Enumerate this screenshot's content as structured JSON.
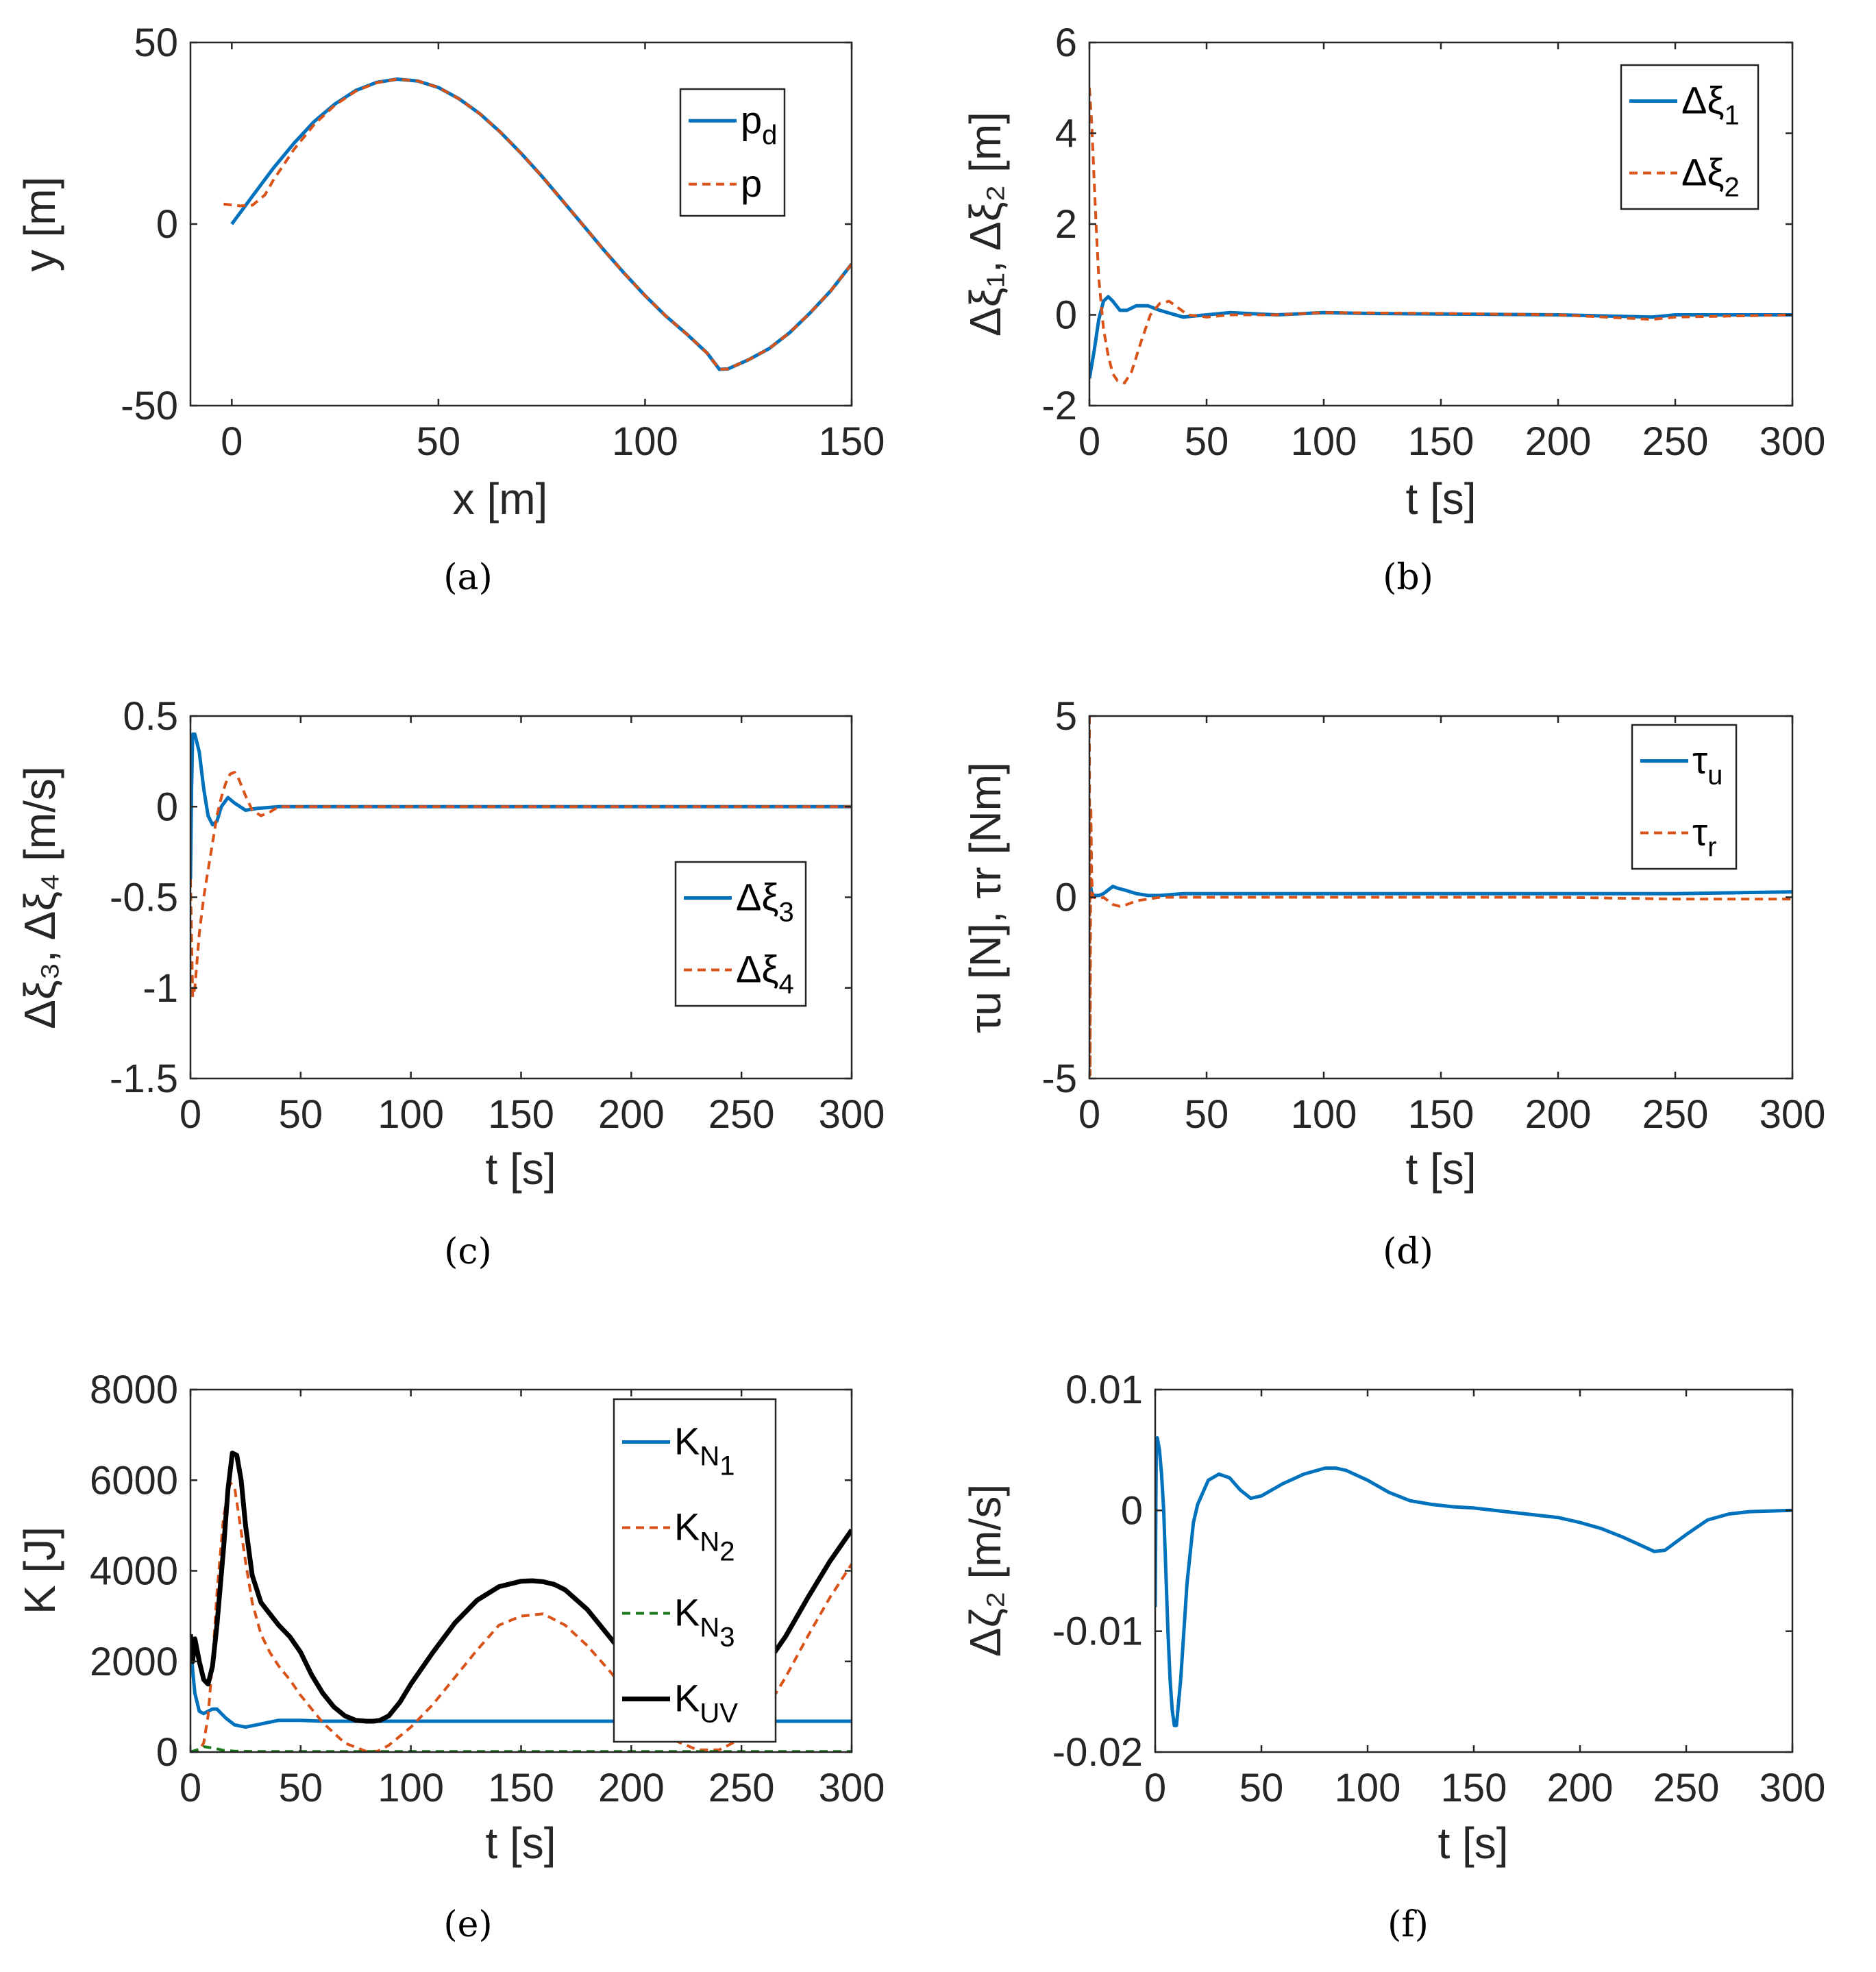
{
  "colors": {
    "blue": "#0072BD",
    "orange": "#D95319",
    "green": "#1A7A1A",
    "black": "#000000"
  },
  "chart_data": [
    {
      "id": "a",
      "type": "line",
      "caption": "(a)",
      "xlabel": "x [m]",
      "ylabel": "y [m]",
      "xlim": [
        -10,
        150
      ],
      "ylim": [
        -50,
        50
      ],
      "xticks": [
        0,
        50,
        100,
        150
      ],
      "yticks": [
        -50,
        0,
        50
      ],
      "legend_position": "upper-right",
      "series": [
        {
          "name": "p_d",
          "label": "p",
          "sub": "d",
          "color": "blue",
          "dash": false,
          "width": 5,
          "x": [
            0,
            5,
            10,
            15,
            20,
            25,
            30,
            35,
            40,
            45,
            50,
            55,
            60,
            65,
            70,
            75,
            80,
            85,
            90,
            95,
            100,
            105,
            110,
            115,
            118,
            120,
            125,
            130,
            135,
            140,
            145,
            150
          ],
          "y": [
            0,
            7.7,
            15.3,
            22.2,
            28.3,
            33.1,
            36.8,
            39.0,
            39.9,
            39.4,
            37.6,
            34.5,
            30.4,
            25.3,
            19.5,
            13.2,
            6.5,
            -0.3,
            -7.1,
            -13.6,
            -19.7,
            -25.3,
            -30.2,
            -35.5,
            -40,
            -39.9,
            -37.4,
            -34.3,
            -29.9,
            -24.4,
            -18.3,
            -11.0
          ]
        },
        {
          "name": "p",
          "label": "p",
          "sub": "",
          "color": "orange",
          "dash": true,
          "width": 4,
          "x": [
            -2,
            2,
            5,
            8,
            10,
            15,
            20,
            25,
            30,
            35,
            40,
            45,
            50,
            55,
            60,
            65,
            70,
            75,
            80,
            85,
            90,
            95,
            100,
            105,
            110,
            115,
            118,
            120,
            125,
            130,
            135,
            140,
            145,
            150
          ],
          "y": [
            5.5,
            5,
            5.2,
            8,
            12,
            20.5,
            27.5,
            32.8,
            36.6,
            38.9,
            39.9,
            39.4,
            37.6,
            34.5,
            30.4,
            25.3,
            19.5,
            13.2,
            6.5,
            -0.3,
            -7.1,
            -13.6,
            -19.7,
            -25.3,
            -30.2,
            -35.5,
            -40,
            -39.9,
            -37.4,
            -34.3,
            -29.9,
            -24.4,
            -18.3,
            -11.0
          ]
        }
      ]
    },
    {
      "id": "b",
      "type": "line",
      "caption": "(b)",
      "xlabel": "t [s]",
      "ylabel": "Δξ₁, Δξ₂ [m]",
      "xlim": [
        0,
        300
      ],
      "ylim": [
        -2,
        6
      ],
      "xticks": [
        0,
        50,
        100,
        150,
        200,
        250,
        300
      ],
      "yticks": [
        -2,
        0,
        2,
        4,
        6
      ],
      "legend_position": "upper-right",
      "series": [
        {
          "name": "Δξ1",
          "label": "Δξ",
          "sub": "1",
          "color": "blue",
          "dash": false,
          "width": 5,
          "x": [
            0,
            2,
            4,
            6,
            8,
            10,
            13,
            16,
            20,
            25,
            30,
            40,
            50,
            60,
            80,
            100,
            120,
            150,
            200,
            240,
            250,
            300
          ],
          "y": [
            -1.4,
            -0.8,
            -0.1,
            0.3,
            0.4,
            0.3,
            0.1,
            0.1,
            0.2,
            0.2,
            0.1,
            -0.05,
            0.0,
            0.05,
            0.0,
            0.05,
            0.03,
            0.02,
            0.0,
            -0.05,
            0.0,
            0.0
          ]
        },
        {
          "name": "Δξ2",
          "label": "Δξ",
          "sub": "2",
          "color": "orange",
          "dash": true,
          "width": 4,
          "x": [
            0,
            1,
            2,
            3,
            4,
            6,
            8,
            10,
            12,
            15,
            18,
            22,
            26,
            30,
            34,
            38,
            42,
            50,
            60,
            80,
            100,
            150,
            200,
            240,
            250,
            300
          ],
          "y": [
            5.0,
            4.2,
            3.0,
            1.8,
            0.8,
            -0.3,
            -0.9,
            -1.3,
            -1.45,
            -1.5,
            -1.25,
            -0.6,
            0.0,
            0.25,
            0.3,
            0.15,
            0.0,
            -0.05,
            0.0,
            0.0,
            0.05,
            0.03,
            0.0,
            -0.1,
            -0.05,
            0.0
          ]
        }
      ]
    },
    {
      "id": "c",
      "type": "line",
      "caption": "(c)",
      "xlabel": "t [s]",
      "ylabel": "Δξ₃, Δξ₄ [m/s]",
      "xlim": [
        0,
        300
      ],
      "ylim": [
        -1.5,
        0.5
      ],
      "xticks": [
        0,
        50,
        100,
        150,
        200,
        250,
        300
      ],
      "yticks": [
        -1.5,
        -1,
        -0.5,
        0,
        0.5
      ],
      "legend_position": "lower-right",
      "series": [
        {
          "name": "Δξ3",
          "label": "Δξ",
          "sub": "3",
          "color": "blue",
          "dash": false,
          "width": 5,
          "x": [
            0,
            0.5,
            1,
            2,
            4,
            6,
            8,
            10,
            12,
            14,
            17,
            20,
            25,
            30,
            40,
            50,
            100,
            150,
            200,
            250,
            300
          ],
          "y": [
            -0.4,
            0.1,
            0.4,
            0.4,
            0.3,
            0.1,
            -0.05,
            -0.1,
            -0.08,
            0.0,
            0.05,
            0.02,
            -0.02,
            -0.01,
            0.0,
            0.0,
            0.0,
            0.0,
            0.0,
            0.0,
            0.0
          ]
        },
        {
          "name": "Δξ4",
          "label": "Δξ",
          "sub": "4",
          "color": "orange",
          "dash": true,
          "width": 4,
          "x": [
            0,
            1,
            2,
            3,
            4,
            6,
            8,
            10,
            12,
            14,
            16,
            18,
            20,
            22,
            25,
            28,
            32,
            36,
            40,
            50,
            100,
            150,
            200,
            250,
            300
          ],
          "y": [
            -0.4,
            -1.05,
            -1.0,
            -0.85,
            -0.7,
            -0.5,
            -0.35,
            -0.2,
            -0.05,
            0.05,
            0.13,
            0.18,
            0.19,
            0.15,
            0.06,
            -0.02,
            -0.05,
            -0.03,
            0.0,
            0.0,
            0.0,
            0.0,
            0.0,
            0.0,
            0.0
          ]
        }
      ]
    },
    {
      "id": "d",
      "type": "line",
      "caption": "(d)",
      "xlabel": "t [s]",
      "ylabel": "τu [N], τr [Nm]",
      "xlim": [
        0,
        300
      ],
      "ylim": [
        -5,
        5
      ],
      "xticks": [
        0,
        50,
        100,
        150,
        200,
        250,
        300
      ],
      "yticks": [
        -5,
        0,
        5
      ],
      "legend_position": "upper-right",
      "series": [
        {
          "name": "τu",
          "label": "τ",
          "sub": "u",
          "color": "blue",
          "dash": false,
          "width": 5,
          "x": [
            0,
            1,
            2,
            4,
            6,
            8,
            10,
            12,
            15,
            20,
            25,
            30,
            40,
            50,
            100,
            150,
            200,
            250,
            300
          ],
          "y": [
            0.5,
            0.1,
            0.05,
            0.05,
            0.1,
            0.2,
            0.3,
            0.25,
            0.2,
            0.1,
            0.05,
            0.05,
            0.1,
            0.1,
            0.1,
            0.1,
            0.1,
            0.1,
            0.15
          ]
        },
        {
          "name": "τr",
          "label": "τ",
          "sub": "r",
          "color": "orange",
          "dash": true,
          "width": 4,
          "x": [
            0,
            0.3,
            0.6,
            1,
            1.5,
            2,
            4,
            6,
            8,
            10,
            13,
            16,
            20,
            25,
            30,
            40,
            50,
            100,
            150,
            200,
            250,
            300
          ],
          "y": [
            5,
            -4.9,
            2.5,
            0.5,
            0.0,
            0.0,
            -0.05,
            0.0,
            -0.1,
            -0.2,
            -0.25,
            -0.2,
            -0.1,
            -0.05,
            0.0,
            0.0,
            0.0,
            0.0,
            0.0,
            0.0,
            -0.05,
            -0.05
          ]
        }
      ]
    },
    {
      "id": "e",
      "type": "line",
      "caption": "(e)",
      "xlabel": "t [s]",
      "ylabel": "K [J]",
      "xlim": [
        0,
        300
      ],
      "ylim": [
        0,
        8000
      ],
      "xticks": [
        0,
        50,
        100,
        150,
        200,
        250,
        300
      ],
      "yticks": [
        0,
        2000,
        4000,
        6000,
        8000
      ],
      "legend_position": "upper-right",
      "series": [
        {
          "name": "KN1",
          "label": "K",
          "sub": "N",
          "subsub": "1",
          "color": "blue",
          "dash": false,
          "width": 5,
          "x": [
            0,
            1,
            2,
            4,
            6,
            8,
            10,
            12,
            14,
            16,
            20,
            25,
            30,
            40,
            50,
            60,
            80,
            100,
            150,
            200,
            250,
            300
          ],
          "y": [
            2600,
            1800,
            1300,
            900,
            850,
            900,
            950,
            950,
            850,
            750,
            600,
            550,
            600,
            700,
            700,
            680,
            680,
            680,
            680,
            680,
            680,
            680
          ]
        },
        {
          "name": "KN2",
          "label": "K",
          "sub": "N",
          "subsub": "2",
          "color": "orange",
          "dash": true,
          "width": 4,
          "x": [
            0,
            2,
            4,
            6,
            8,
            10,
            12,
            15,
            18,
            20,
            22,
            25,
            28,
            32,
            36,
            40,
            45,
            50,
            60,
            70,
            80,
            85,
            90,
            100,
            110,
            120,
            130,
            140,
            150,
            160,
            170,
            180,
            190,
            200,
            210,
            220,
            230,
            240,
            250,
            260,
            270,
            280,
            290,
            300
          ],
          "y": [
            0,
            0,
            50,
            200,
            800,
            2000,
            3500,
            5200,
            5950,
            5850,
            5200,
            4200,
            3300,
            2600,
            2200,
            1900,
            1600,
            1250,
            650,
            200,
            10,
            20,
            150,
            550,
            1050,
            1650,
            2250,
            2800,
            3000,
            3050,
            2800,
            2350,
            1800,
            1200,
            650,
            250,
            50,
            50,
            300,
            850,
            1650,
            2550,
            3400,
            4150
          ]
        },
        {
          "name": "KN3",
          "label": "K",
          "sub": "N",
          "subsub": "3",
          "color": "green",
          "dash": true,
          "width": 4,
          "x": [
            0,
            3,
            6,
            10,
            15,
            20,
            30,
            50,
            100,
            150,
            200,
            250,
            300
          ],
          "y": [
            0,
            50,
            120,
            90,
            40,
            20,
            10,
            10,
            10,
            10,
            10,
            10,
            10
          ]
        },
        {
          "name": "KUV",
          "label": "K",
          "sub": "UV",
          "subsub": "",
          "color": "black",
          "dash": false,
          "width": 7,
          "x": [
            0,
            1,
            2,
            4,
            6,
            8,
            10,
            12,
            15,
            17,
            19,
            21,
            23,
            25,
            28,
            32,
            36,
            40,
            45,
            50,
            55,
            60,
            65,
            70,
            75,
            80,
            83,
            86,
            90,
            95,
            100,
            110,
            120,
            130,
            140,
            150,
            155,
            160,
            165,
            170,
            180,
            190,
            200,
            210,
            220,
            230,
            240,
            250,
            260,
            270,
            280,
            290,
            300
          ],
          "y": [
            2600,
            2000,
            2500,
            2000,
            1600,
            1500,
            1900,
            2800,
            4500,
            5800,
            6600,
            6550,
            6000,
            5000,
            3900,
            3300,
            3050,
            2800,
            2550,
            2200,
            1700,
            1300,
            1000,
            800,
            700,
            680,
            680,
            700,
            800,
            1100,
            1500,
            2200,
            2850,
            3350,
            3650,
            3770,
            3780,
            3760,
            3700,
            3580,
            3150,
            2550,
            1950,
            1450,
            1200,
            1150,
            1250,
            1450,
            1850,
            2550,
            3400,
            4200,
            4900
          ]
        }
      ]
    },
    {
      "id": "f",
      "type": "line",
      "caption": "(f)",
      "xlabel": "t [s]",
      "ylabel": "Δζ₂ [m/s]",
      "xlim": [
        0,
        300
      ],
      "ylim": [
        -0.02,
        0.01
      ],
      "xticks": [
        0,
        50,
        100,
        150,
        200,
        250,
        300
      ],
      "yticks": [
        -0.02,
        -0.01,
        0,
        0.01
      ],
      "ytick_labels": [
        "-0.02",
        "-0.01",
        "0",
        "0.01"
      ],
      "legend_position": "none",
      "series": [
        {
          "name": "Δζ2",
          "label": "",
          "sub": "",
          "color": "blue",
          "dash": false,
          "width": 5,
          "x": [
            0,
            0.5,
            1,
            2,
            3,
            4,
            5,
            6,
            7,
            8,
            9,
            10,
            12,
            15,
            18,
            20,
            25,
            30,
            35,
            40,
            45,
            50,
            60,
            70,
            80,
            85,
            90,
            100,
            110,
            120,
            130,
            140,
            150,
            170,
            190,
            200,
            210,
            220,
            230,
            235,
            240,
            250,
            260,
            270,
            280,
            300
          ],
          "y": [
            -0.008,
            0.005,
            0.006,
            0.005,
            0.003,
            0.0,
            -0.005,
            -0.01,
            -0.014,
            -0.0165,
            -0.0178,
            -0.0178,
            -0.014,
            -0.006,
            -0.001,
            0.0005,
            0.0025,
            0.003,
            0.0027,
            0.0017,
            0.001,
            0.0012,
            0.0022,
            0.003,
            0.0035,
            0.0035,
            0.0033,
            0.0025,
            0.0015,
            0.0008,
            0.0005,
            0.0003,
            0.0002,
            -0.0002,
            -0.0006,
            -0.001,
            -0.0015,
            -0.0022,
            -0.003,
            -0.0034,
            -0.0033,
            -0.002,
            -0.0008,
            -0.0003,
            -0.0001,
            0.0
          ]
        }
      ]
    }
  ]
}
